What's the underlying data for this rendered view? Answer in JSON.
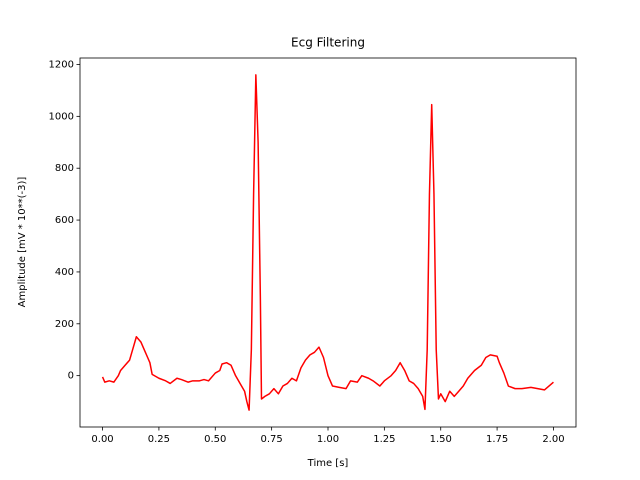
{
  "chart_data": {
    "type": "line",
    "title": "Ecg Filtering",
    "x_label": "Time [s]",
    "y_label": "Amplitude [mV * 10**(-3)]",
    "x": [
      0.0,
      0.01,
      0.03,
      0.05,
      0.07,
      0.08,
      0.1,
      0.12,
      0.14,
      0.15,
      0.17,
      0.19,
      0.2,
      0.21,
      0.22,
      0.25,
      0.28,
      0.3,
      0.33,
      0.35,
      0.38,
      0.4,
      0.43,
      0.45,
      0.47,
      0.5,
      0.52,
      0.53,
      0.55,
      0.57,
      0.59,
      0.61,
      0.63,
      0.64,
      0.65,
      0.66,
      0.67,
      0.68,
      0.69,
      0.7,
      0.705,
      0.72,
      0.74,
      0.76,
      0.78,
      0.8,
      0.82,
      0.84,
      0.86,
      0.88,
      0.9,
      0.92,
      0.94,
      0.96,
      0.98,
      1.0,
      1.02,
      1.05,
      1.08,
      1.1,
      1.13,
      1.15,
      1.18,
      1.2,
      1.23,
      1.25,
      1.28,
      1.3,
      1.32,
      1.34,
      1.36,
      1.38,
      1.4,
      1.42,
      1.43,
      1.44,
      1.45,
      1.46,
      1.47,
      1.48,
      1.49,
      1.5,
      1.52,
      1.54,
      1.56,
      1.58,
      1.6,
      1.62,
      1.65,
      1.68,
      1.7,
      1.72,
      1.75,
      1.76,
      1.78,
      1.8,
      1.83,
      1.86,
      1.9,
      1.93,
      1.96,
      1.98,
      2.0
    ],
    "series": [
      {
        "color": "#ff0000",
        "values": [
          -5,
          -25,
          -20,
          -25,
          0,
          20,
          40,
          60,
          120,
          150,
          130,
          90,
          70,
          50,
          5,
          -10,
          -20,
          -30,
          -10,
          -15,
          -25,
          -20,
          -20,
          -15,
          -20,
          10,
          20,
          45,
          50,
          40,
          0,
          -30,
          -60,
          -100,
          -133,
          100,
          700,
          1160,
          900,
          300,
          -90,
          -80,
          -70,
          -50,
          -70,
          -40,
          -30,
          -10,
          -20,
          30,
          60,
          80,
          90,
          110,
          70,
          0,
          -40,
          -45,
          -50,
          -20,
          -25,
          0,
          -10,
          -20,
          -40,
          -20,
          0,
          20,
          50,
          20,
          -20,
          -30,
          -50,
          -80,
          -130,
          100,
          700,
          1045,
          700,
          100,
          -90,
          -70,
          -100,
          -60,
          -80,
          -60,
          -40,
          -10,
          20,
          40,
          70,
          80,
          75,
          50,
          10,
          -40,
          -50,
          -50,
          -45,
          -50,
          -55,
          -40,
          -25
        ]
      }
    ],
    "xlim": [
      -0.1,
      2.1
    ],
    "ylim": [
      -198,
      1225
    ],
    "xticks": [
      {
        "value": 0,
        "label": "0.00"
      },
      {
        "value": 0.25,
        "label": "0.25"
      },
      {
        "value": 0.5,
        "label": "0.50"
      },
      {
        "value": 0.75,
        "label": "0.75"
      },
      {
        "value": 1,
        "label": "1.00"
      },
      {
        "value": 1.25,
        "label": "1.25"
      },
      {
        "value": 1.5,
        "label": "1.50"
      },
      {
        "value": 1.75,
        "label": "1.75"
      },
      {
        "value": 2,
        "label": "2.00"
      }
    ],
    "yticks": [
      0,
      200,
      400,
      600,
      800,
      1000,
      1200
    ]
  }
}
